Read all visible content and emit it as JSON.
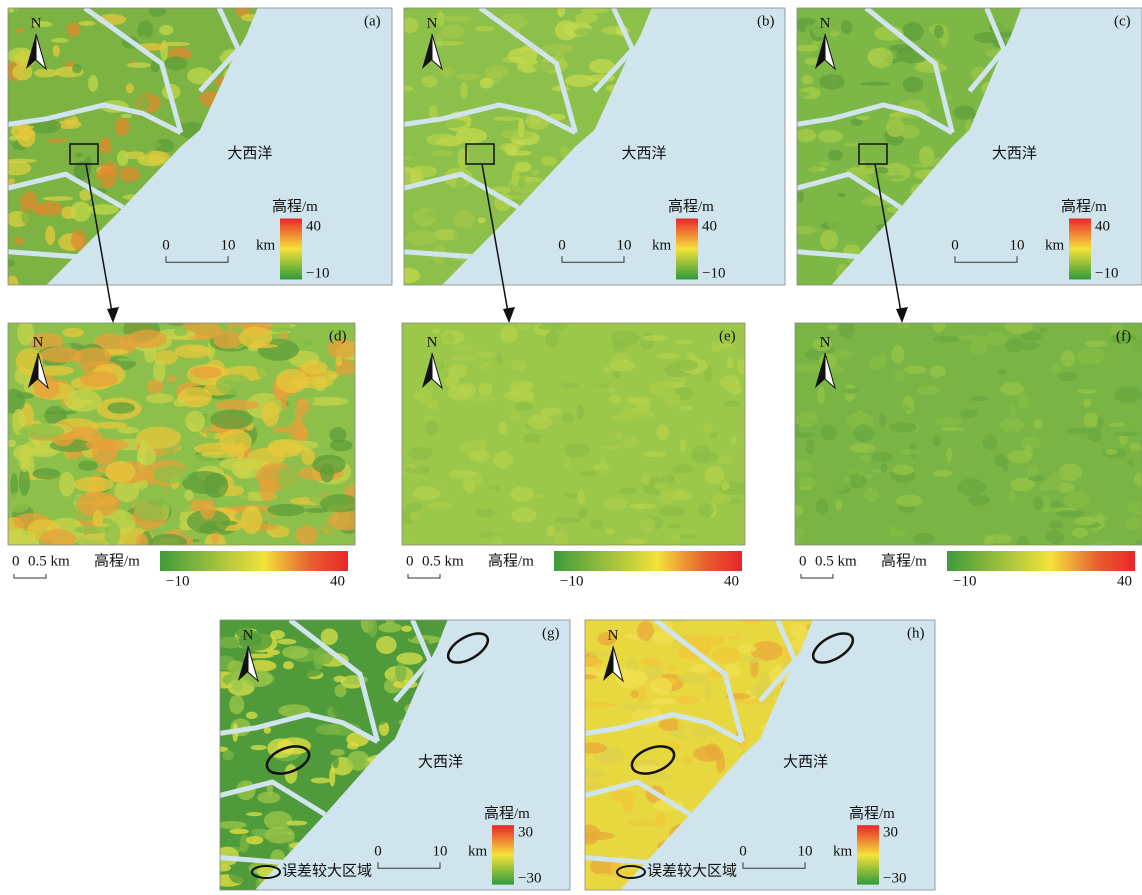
{
  "overview_maps": [
    {
      "label": "(a)",
      "north": "N",
      "ocean": "大西洋",
      "scale": {
        "start": "0",
        "end": "10",
        "unit": "km"
      },
      "legend": {
        "title": "高程/m",
        "max": "40",
        "min": "−10"
      }
    },
    {
      "label": "(b)",
      "north": "N",
      "ocean": "大西洋",
      "scale": {
        "start": "0",
        "end": "10",
        "unit": "km"
      },
      "legend": {
        "title": "高程/m",
        "max": "40",
        "min": "−10"
      }
    },
    {
      "label": "(c)",
      "north": "N",
      "ocean": "大西洋",
      "scale": {
        "start": "0",
        "end": "10",
        "unit": "km"
      },
      "legend": {
        "title": "高程/m",
        "max": "40",
        "min": "−10"
      }
    }
  ],
  "zoom_maps": [
    {
      "label": "(d)",
      "north": "N",
      "scale": {
        "start": "0",
        "end": "0.5 km"
      },
      "legend": {
        "title": "高程/m",
        "min": "−10",
        "max": "40"
      }
    },
    {
      "label": "(e)",
      "north": "N",
      "scale": {
        "start": "0",
        "end": "0.5 km"
      },
      "legend": {
        "title": "高程/m",
        "min": "−10",
        "max": "40"
      }
    },
    {
      "label": "(f)",
      "north": "N",
      "scale": {
        "start": "0",
        "end": "0.5 km"
      },
      "legend": {
        "title": "高程/m",
        "min": "−10",
        "max": "40"
      }
    }
  ],
  "error_maps": [
    {
      "label": "(g)",
      "north": "N",
      "ocean": "大西洋",
      "scale": {
        "start": "0",
        "end": "10",
        "unit": "km"
      },
      "legend": {
        "title": "高程/m",
        "max": "30",
        "min": "−30"
      },
      "note": "误差较大区域"
    },
    {
      "label": "(h)",
      "north": "N",
      "ocean": "大西洋",
      "scale": {
        "start": "0",
        "end": "10",
        "unit": "km"
      },
      "legend": {
        "title": "高程/m",
        "max": "30",
        "min": "−30"
      },
      "note": "误差较大区域"
    }
  ]
}
